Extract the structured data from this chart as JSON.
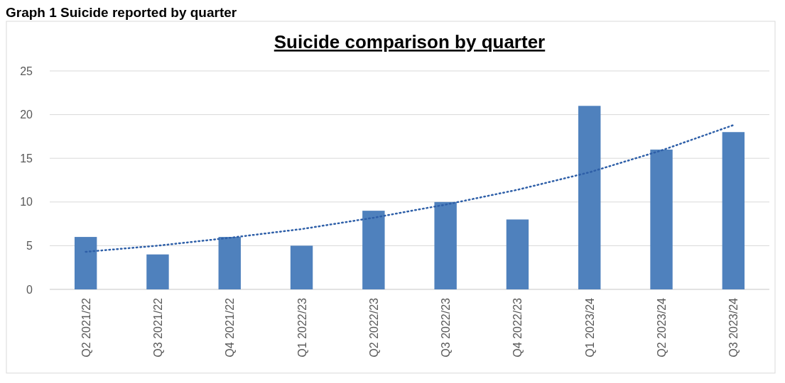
{
  "chart_data": {
    "type": "bar",
    "title": "Suicide comparison by quarter",
    "annotations": [
      "Graph 1 Suicide reported by quarter"
    ],
    "categories": [
      "Q2 2021/22",
      "Q3 2021/22",
      "Q4 2021/22",
      "Q1 2022/23",
      "Q2 2022/23",
      "Q3 2022/23",
      "Q4 2022/23",
      "Q1 2023/24",
      "Q2 2023/24",
      "Q3 2023/24"
    ],
    "series": [
      {
        "color": "#4f81bd",
        "values": [
          6,
          4,
          6,
          5,
          9,
          10,
          8,
          21,
          16,
          18
        ]
      },
      {
        "type": "line",
        "color": "#2e5fa8",
        "line_style": "dotted",
        "values": [
          4.3,
          5.0,
          5.9,
          6.9,
          8.2,
          9.7,
          11.4,
          13.4,
          15.9,
          18.8
        ]
      }
    ],
    "ylim": [
      0,
      25
    ],
    "yticks": [
      0,
      5,
      10,
      15,
      20,
      25
    ],
    "grid": "y"
  }
}
